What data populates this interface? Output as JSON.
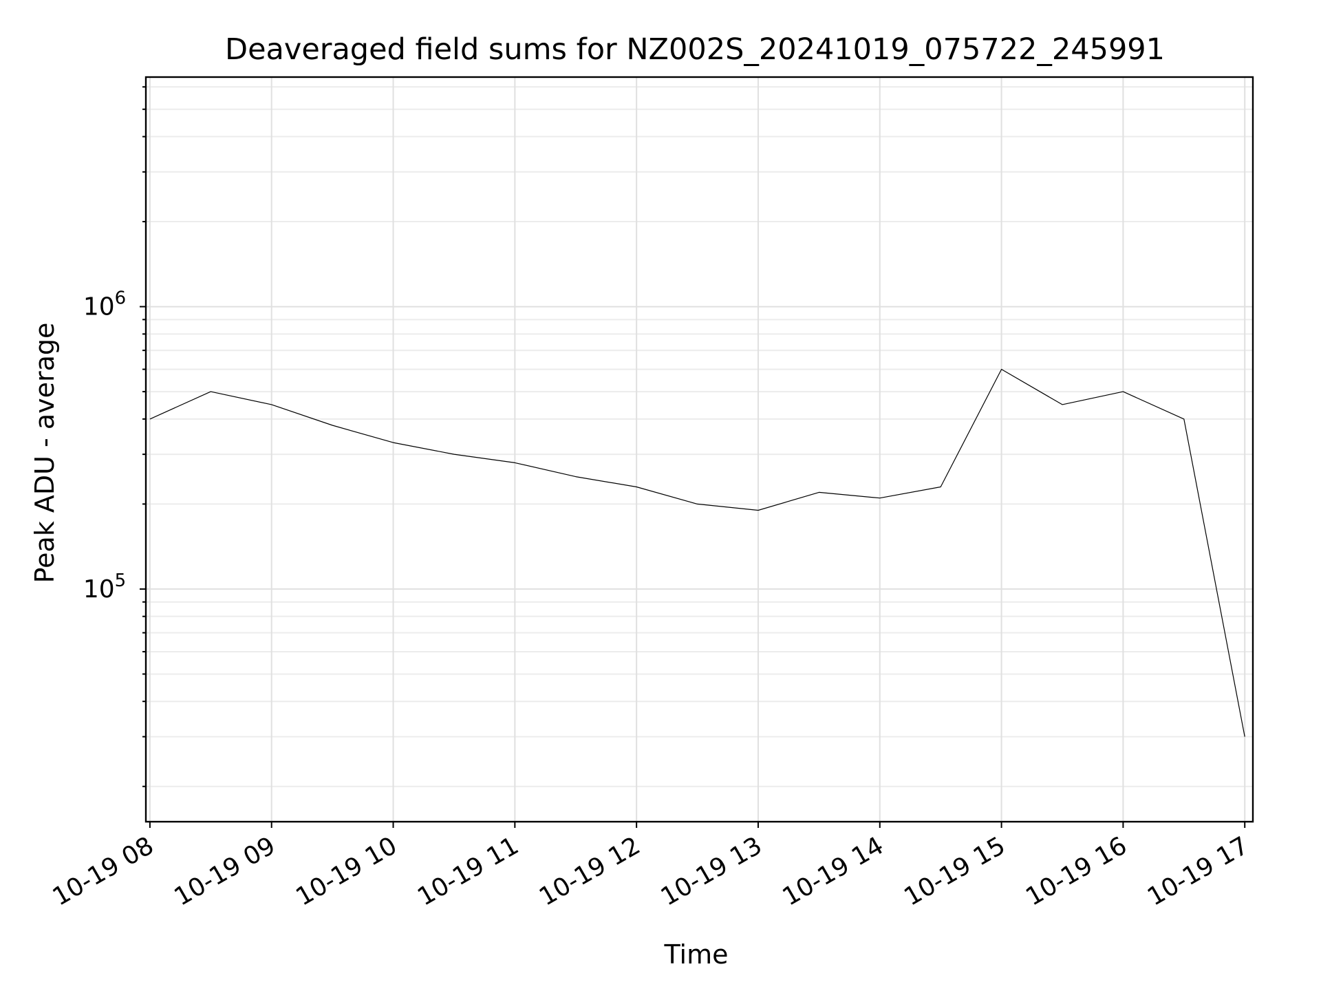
{
  "chart_data": {
    "type": "line",
    "title": "Deaveraged field sums for NZ002S_20241019_075722_245991",
    "xlabel": "Time",
    "ylabel": "Peak ADU - average",
    "yscale": "log",
    "ylim": [
      15000,
      6500000
    ],
    "xlim": [
      "2024-10-19T07:58:00",
      "2024-10-19T17:04:00"
    ],
    "x_ticks": [
      "2024-10-19T08:00",
      "2024-10-19T09:00",
      "2024-10-19T10:00",
      "2024-10-19T11:00",
      "2024-10-19T12:00",
      "2024-10-19T13:00",
      "2024-10-19T14:00",
      "2024-10-19T15:00",
      "2024-10-19T16:00",
      "2024-10-19T17:00"
    ],
    "x_tick_labels": [
      "10-19 08",
      "10-19 09",
      "10-19 10",
      "10-19 11",
      "10-19 12",
      "10-19 13",
      "10-19 14",
      "10-19 15",
      "10-19 16",
      "10-19 17"
    ],
    "y_ticks": [
      100000,
      1000000
    ],
    "y_tick_labels": [
      {
        "base": "10",
        "exp": "5"
      },
      {
        "base": "10",
        "exp": "6"
      }
    ],
    "grid": true,
    "line_color": "#000000",
    "series": [
      {
        "x": [
          "2024-10-19T08:00",
          "2024-10-19T08:30",
          "2024-10-19T09:00",
          "2024-10-19T09:30",
          "2024-10-19T10:00",
          "2024-10-19T10:30",
          "2024-10-19T11:00",
          "2024-10-19T11:30",
          "2024-10-19T12:00",
          "2024-10-19T12:30",
          "2024-10-19T13:00",
          "2024-10-19T13:30",
          "2024-10-19T14:00",
          "2024-10-19T14:30",
          "2024-10-19T15:00",
          "2024-10-19T15:30",
          "2024-10-19T16:00",
          "2024-10-19T16:30",
          "2024-10-19T17:00"
        ],
        "y": [
          400000,
          500000,
          450000,
          380000,
          330000,
          300000,
          280000,
          250000,
          230000,
          200000,
          190000,
          220000,
          210000,
          230000,
          600000,
          450000,
          500000,
          400000,
          30000
        ]
      }
    ]
  }
}
